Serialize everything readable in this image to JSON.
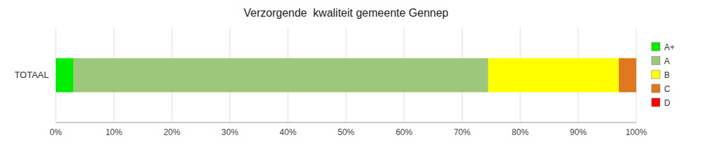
{
  "chart_data": {
    "type": "bar",
    "orientation": "horizontal",
    "stacked": true,
    "title": "Verzorgende  kwaliteit gemeente Gennep",
    "categories": [
      "TOTAAL"
    ],
    "series": [
      {
        "name": "A+",
        "color": "#00EE00",
        "values": [
          3.0
        ]
      },
      {
        "name": "A",
        "color": "#9DC77A",
        "values": [
          71.5
        ]
      },
      {
        "name": "B",
        "color": "#FFFF00",
        "values": [
          22.5
        ]
      },
      {
        "name": "C",
        "color": "#E07820",
        "values": [
          3.0
        ]
      },
      {
        "name": "D",
        "color": "#FF0000",
        "values": [
          0.0
        ]
      }
    ],
    "xlim": [
      0,
      100
    ],
    "xticks": [
      {
        "value": 0,
        "label": "0%"
      },
      {
        "value": 10,
        "label": "10%"
      },
      {
        "value": 20,
        "label": "20%"
      },
      {
        "value": 30,
        "label": "30%"
      },
      {
        "value": 40,
        "label": "40%"
      },
      {
        "value": 50,
        "label": "50%"
      },
      {
        "value": 60,
        "label": "60%"
      },
      {
        "value": 70,
        "label": "70%"
      },
      {
        "value": 80,
        "label": "80%"
      },
      {
        "value": 90,
        "label": "90%"
      },
      {
        "value": 100,
        "label": "100%"
      }
    ],
    "grid": true,
    "legend": "right"
  }
}
